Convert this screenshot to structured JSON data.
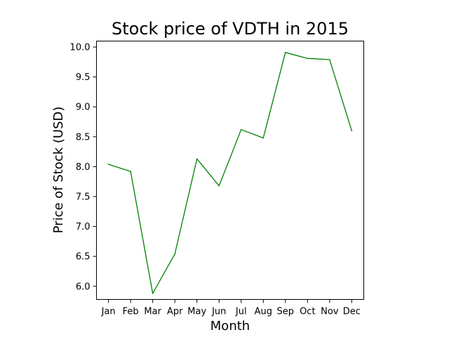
{
  "chart_data": {
    "type": "line",
    "title": "Stock price of VDTH in 2015",
    "xlabel": "Month",
    "ylabel": "Price of Stock (USD)",
    "categories": [
      "Jan",
      "Feb",
      "Mar",
      "Apr",
      "May",
      "Jun",
      "Jul",
      "Aug",
      "Sep",
      "Oct",
      "Nov",
      "Dec"
    ],
    "series": [
      {
        "values": [
          8.04,
          7.92,
          5.88,
          6.54,
          8.13,
          7.68,
          8.62,
          8.48,
          9.91,
          9.81,
          9.79,
          8.6
        ],
        "color": "#008000"
      }
    ],
    "ylim": [
      5.78,
      10.1
    ],
    "yticks": [
      6.0,
      6.5,
      7.0,
      7.5,
      8.0,
      8.5,
      9.0,
      9.5,
      10.0
    ],
    "grid": false,
    "legend": "none"
  }
}
